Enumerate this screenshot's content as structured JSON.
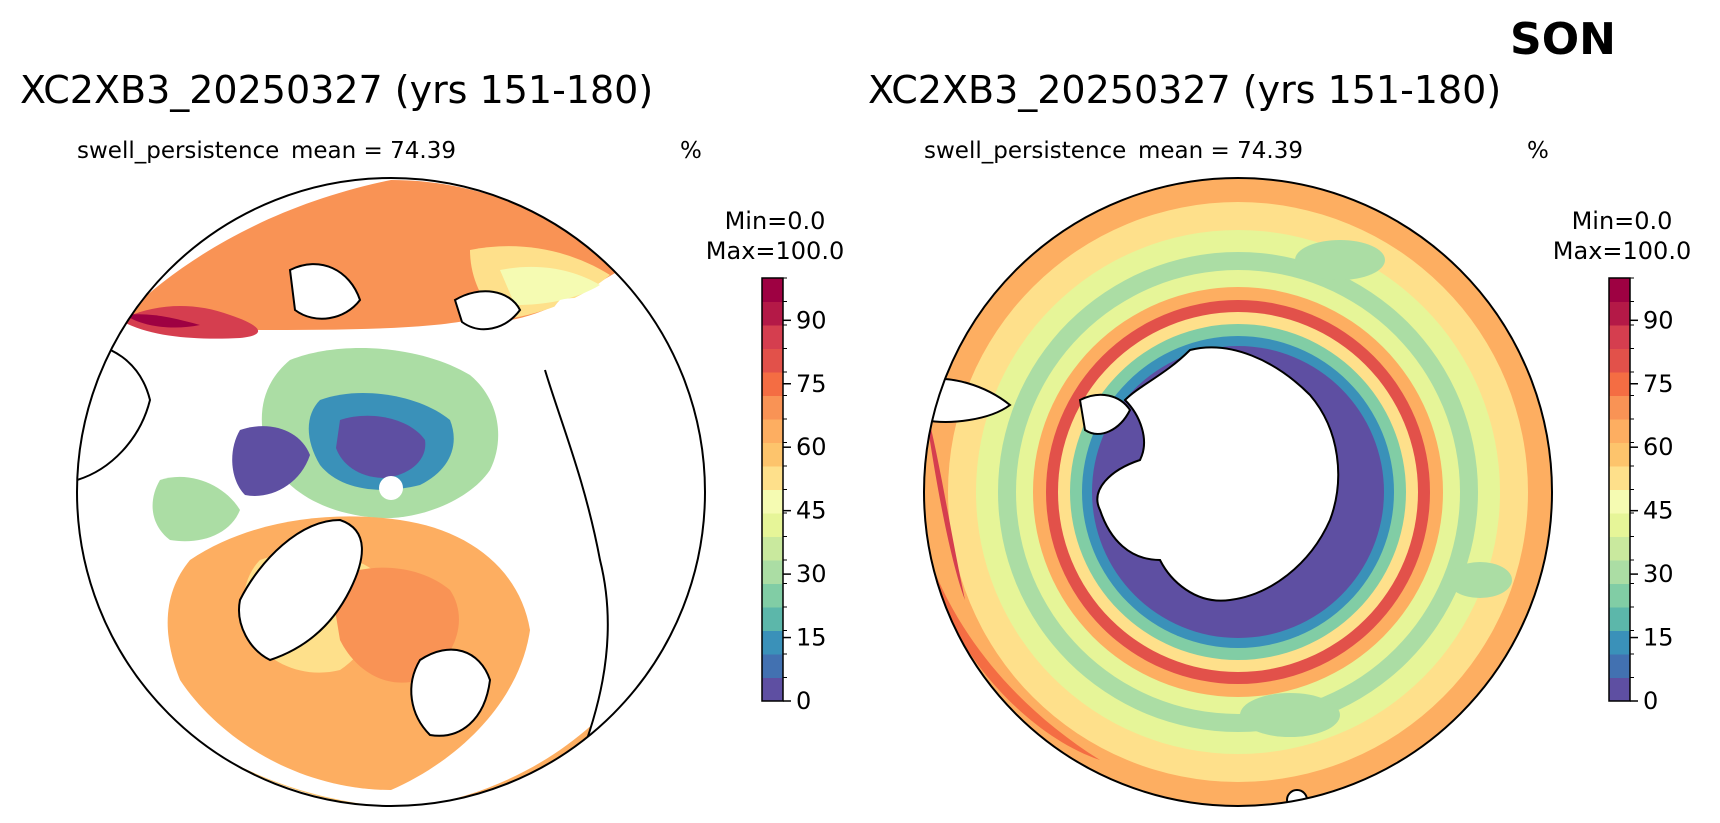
{
  "figure": {
    "season": "SON"
  },
  "panels": [
    {
      "title": "XC2XB3_20250327 (yrs 151-180)",
      "variable": "swell_persistence",
      "mean_label": "mean = 74.39",
      "units": "%",
      "cbar_min_label": "Min=0.0",
      "cbar_max_label": "Max=100.0",
      "hemisphere": "north"
    },
    {
      "title": "XC2XB3_20250327 (yrs 151-180)",
      "variable": "swell_persistence",
      "mean_label": "mean = 74.39",
      "units": "%",
      "cbar_min_label": "Min=0.0",
      "cbar_max_label": "Max=100.0",
      "hemisphere": "south"
    }
  ],
  "colorbar": {
    "colors": [
      "#5e4fa2",
      "#4271b1",
      "#3a91b9",
      "#5cb7aa",
      "#81cda5",
      "#abdda4",
      "#c9e99e",
      "#e6f598",
      "#f5fbb2",
      "#fee08b",
      "#fdc46c",
      "#fdae61",
      "#f99355",
      "#f46d43",
      "#e2514a",
      "#d53e4f",
      "#b41947",
      "#9e0142"
    ],
    "ticks": [
      "0",
      "15",
      "30",
      "45",
      "60",
      "75",
      "90"
    ],
    "tick_values": [
      0,
      15,
      30,
      45,
      60,
      75,
      90
    ],
    "vmin": 0,
    "vmax": 100
  }
}
